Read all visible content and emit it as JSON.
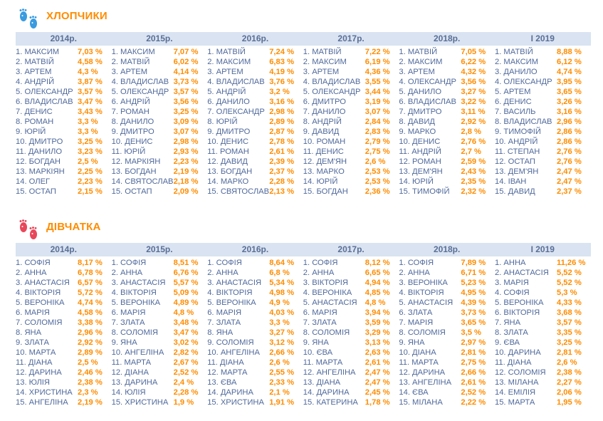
{
  "colors": {
    "accent": "#ff8c00",
    "header_bg": "#d9e3f2",
    "name_text": "#506a9c",
    "boys_icon": "#3a9be0",
    "girls_icon": "#e8475a"
  },
  "sections": [
    {
      "id": "boys",
      "title": "ХЛОПЧИКИ",
      "icon": "blue-footprints-icon",
      "columns": [
        {
          "year": "2014р.",
          "rows": [
            {
              "n": "1. МАКСИМ",
              "p": "7,03 %"
            },
            {
              "n": "2. МАТВІЙ",
              "p": "4,58 %"
            },
            {
              "n": "3. АРТЕМ",
              "p": "4,3 %"
            },
            {
              "n": "4. АНДРІЙ",
              "p": "3,87 %"
            },
            {
              "n": "5. ОЛЕКСАНДР",
              "p": "3,57 %"
            },
            {
              "n": "6. ВЛАДИСЛАВ",
              "p": "3,47 %"
            },
            {
              "n": "7. ДЕНИС",
              "p": "3,43 %"
            },
            {
              "n": "8. РОМАН",
              "p": "3,3 %"
            },
            {
              "n": "9. ЮРІЙ",
              "p": "3,3 %"
            },
            {
              "n": "10. ДМИТРО",
              "p": "3,25 %"
            },
            {
              "n": "11. ДАНИЛО",
              "p": "3,23 %"
            },
            {
              "n": "12. БОГДАН",
              "p": "2,5 %"
            },
            {
              "n": "13. МАРКІЯН",
              "p": "2,25 %"
            },
            {
              "n": "14. ОЛЕГ",
              "p": "2,23 %"
            },
            {
              "n": "15. ОСТАП",
              "p": "2,15 %"
            }
          ]
        },
        {
          "year": "2015р.",
          "rows": [
            {
              "n": "1. МАКСИМ",
              "p": "7,07 %"
            },
            {
              "n": "2. МАТВІЙ",
              "p": "6,02 %"
            },
            {
              "n": "3. АРТЕМ",
              "p": "4,14 %"
            },
            {
              "n": "4. ВЛАДИСЛАВ",
              "p": "3,73 %"
            },
            {
              "n": "5. ОЛЕКСАНДР",
              "p": "3,57 %"
            },
            {
              "n": "6. АНДРІЙ",
              "p": "3,56 %"
            },
            {
              "n": "7. РОМАН",
              "p": "3,25 %"
            },
            {
              "n": "8. ДАНИЛО",
              "p": "3,09 %"
            },
            {
              "n": "9. ДМИТРО",
              "p": "3,07 %"
            },
            {
              "n": "10. ДЕНИС",
              "p": "2,98 %"
            },
            {
              "n": "11. ЮРІЙ",
              "p": "2,93 %"
            },
            {
              "n": "12. МАРКІЯН",
              "p": "2,23 %"
            },
            {
              "n": "13. БОГДАН",
              "p": "2,19 %"
            },
            {
              "n": "14. СВЯТОСЛАВ",
              "p": "2,18 %"
            },
            {
              "n": "15. ОСТАП",
              "p": "2,09 %"
            }
          ]
        },
        {
          "year": "2016р.",
          "rows": [
            {
              "n": "1. МАТВІЙ",
              "p": "7,24 %"
            },
            {
              "n": "2. МАКСИМ",
              "p": "6,83 %"
            },
            {
              "n": "3. АРТЕМ",
              "p": "4,19 %"
            },
            {
              "n": "4. ВЛАДИСЛАВ",
              "p": "3,76 %"
            },
            {
              "n": "5. АНДРІЙ",
              "p": "3,2 %"
            },
            {
              "n": "6. ДАНИЛО",
              "p": "3,16 %"
            },
            {
              "n": "7. ОЛЕКСАНДР",
              "p": "2,98 %"
            },
            {
              "n": "8. ЮРІЙ",
              "p": "2,89 %"
            },
            {
              "n": "9. ДМИТРО",
              "p": "2,87 %"
            },
            {
              "n": "10. ДЕНИС",
              "p": "2,78 %"
            },
            {
              "n": "11. РОМАН",
              "p": "2,61 %"
            },
            {
              "n": "12. ДАВИД",
              "p": "2,39 %"
            },
            {
              "n": "13. БОГДАН",
              "p": "2,37 %"
            },
            {
              "n": "14. МАРКО",
              "p": "2,28 %"
            },
            {
              "n": "15. СВЯТОСЛАВ",
              "p": "2,13 %"
            }
          ]
        },
        {
          "year": "2017р.",
          "rows": [
            {
              "n": "1. МАТВІЙ",
              "p": "7,22 %"
            },
            {
              "n": "2. МАКСИМ",
              "p": "6,19 %"
            },
            {
              "n": "3. АРТЕМ",
              "p": "4,36 %"
            },
            {
              "n": "4. ВЛАДИСЛАВ",
              "p": "3,55 %"
            },
            {
              "n": "5. ОЛЕКСАНДР",
              "p": "3,44 %"
            },
            {
              "n": "6. ДМИТРО",
              "p": "3,19 %"
            },
            {
              "n": "7. ДАНИЛО",
              "p": "3,07 %"
            },
            {
              "n": "8. АНДРІЙ",
              "p": "2,84 %"
            },
            {
              "n": "9. ДАВИД",
              "p": "2,83 %"
            },
            {
              "n": "10. РОМАН",
              "p": "2,79 %"
            },
            {
              "n": "11. ДЕНИС",
              "p": "2,75 %"
            },
            {
              "n": "12. ДЕМ'ЯН",
              "p": "2,6 %"
            },
            {
              "n": "13. МАРКО",
              "p": "2,53 %"
            },
            {
              "n": "14. ЮРІЙ",
              "p": "2,53 %"
            },
            {
              "n": "15. БОГДАН",
              "p": "2,36 %"
            }
          ]
        },
        {
          "year": "2018р.",
          "rows": [
            {
              "n": "1. МАТВІЙ",
              "p": "7,05 %"
            },
            {
              "n": "2. МАКСИМ",
              "p": "6,22 %"
            },
            {
              "n": "3. АРТЕМ",
              "p": "4,32 %"
            },
            {
              "n": "4. ОЛЕКСАНДР",
              "p": "3,56 %"
            },
            {
              "n": "5. ДАНИЛО",
              "p": "3,27 %"
            },
            {
              "n": "6. ВЛАДИСЛАВ",
              "p": "3,22 %"
            },
            {
              "n": "7. ДМИТРО",
              "p": "3,11 %"
            },
            {
              "n": "8. ДАВИД",
              "p": "2,92 %"
            },
            {
              "n": "9. МАРКО",
              "p": "2,8 %"
            },
            {
              "n": "10. ДЕНИС",
              "p": "2,76 %"
            },
            {
              "n": "11. АНДРІЙ",
              "p": "2,7 %"
            },
            {
              "n": "12. РОМАН",
              "p": "2,59 %"
            },
            {
              "n": "13. ДЕМ'ЯН",
              "p": "2,43 %"
            },
            {
              "n": "14. ЮРІЙ",
              "p": "2,35 %"
            },
            {
              "n": "15. ТИМОФІЙ",
              "p": "2,32 %"
            }
          ]
        },
        {
          "year": "I 2019",
          "rows": [
            {
              "n": "1. МАТВІЙ",
              "p": "8,88 %"
            },
            {
              "n": "2. МАКСИМ",
              "p": "6,12 %"
            },
            {
              "n": "3. ДАНИЛО",
              "p": "4,74 %"
            },
            {
              "n": "4. ОЛЕКСАНДР",
              "p": "3,95 %"
            },
            {
              "n": "5. АРТЕМ",
              "p": "3,65 %"
            },
            {
              "n": "6. ДЕНИС",
              "p": "3,26 %"
            },
            {
              "n": "7. ВАСИЛЬ",
              "p": "3,16 %"
            },
            {
              "n": "8. ВЛАДИСЛАВ",
              "p": "2,96 %"
            },
            {
              "n": "9. ТИМОФІЙ",
              "p": "2,86 %"
            },
            {
              "n": "10. АНДРІЙ",
              "p": "2,86 %"
            },
            {
              "n": "11. СТЕПАН",
              "p": "2,76 %"
            },
            {
              "n": "12. ОСТАП",
              "p": "2,76 %"
            },
            {
              "n": "13. ДЕМ'ЯН",
              "p": "2,47 %"
            },
            {
              "n": "14. ІВАН",
              "p": "2,47 %"
            },
            {
              "n": "15. ДАВИД",
              "p": "2,37 %"
            }
          ]
        }
      ]
    },
    {
      "id": "girls",
      "title": "ДІВЧАТКА",
      "icon": "red-footprints-icon",
      "columns": [
        {
          "year": "2014р.",
          "rows": [
            {
              "n": "1. СОФІЯ",
              "p": "8,17 %"
            },
            {
              "n": "2. АННА",
              "p": "6,78 %"
            },
            {
              "n": "3. АНАСТАСІЯ",
              "p": "6,57 %"
            },
            {
              "n": "4. ВІКТОРІЯ",
              "p": "5,72 %"
            },
            {
              "n": "5. ВЕРОНІКА",
              "p": "4,74 %"
            },
            {
              "n": "6. МАРІЯ",
              "p": "4,58 %"
            },
            {
              "n": "7. СОЛОМІЯ",
              "p": "3,38 %"
            },
            {
              "n": "8. ЯНА",
              "p": "2,96 %"
            },
            {
              "n": "9. ЗЛАТА",
              "p": "2,92 %"
            },
            {
              "n": "10. МАРТА",
              "p": "2,89 %"
            },
            {
              "n": "11. ДІАНА",
              "p": "2,5 %"
            },
            {
              "n": "12. ДАРИНА",
              "p": "2,46 %"
            },
            {
              "n": "13. ЮЛІЯ",
              "p": "2,38 %"
            },
            {
              "n": "14. ХРИСТИНА",
              "p": "2,3 %"
            },
            {
              "n": "15. АНГЕЛІНА",
              "p": "2,19 %"
            }
          ]
        },
        {
          "year": "2015р.",
          "rows": [
            {
              "n": "1. СОФІЯ",
              "p": "8,51 %"
            },
            {
              "n": "2. АННА",
              "p": "6,76 %"
            },
            {
              "n": "3. АНАСТАСІЯ",
              "p": "5,57 %"
            },
            {
              "n": "4. ВІКТОРІЯ",
              "p": "5,09 %"
            },
            {
              "n": "5. ВЕРОНІКА",
              "p": "4,89 %"
            },
            {
              "n": "6. МАРІЯ",
              "p": "4,8 %"
            },
            {
              "n": "7. ЗЛАТА",
              "p": "3,48 %"
            },
            {
              "n": "8. СОЛОМІЯ",
              "p": "3,47 %"
            },
            {
              "n": "9. ЯНА",
              "p": "3,02 %"
            },
            {
              "n": "10. АНГЕЛІНА",
              "p": "2,82 %"
            },
            {
              "n": "11. МАРТА",
              "p": "2,67 %"
            },
            {
              "n": "12. ДІАНА",
              "p": "2,52 %"
            },
            {
              "n": "13. ДАРИНА",
              "p": "2,4 %"
            },
            {
              "n": "14. ЮЛІЯ",
              "p": "2,28 %"
            },
            {
              "n": "15. ХРИСТИНА",
              "p": "1,9 %"
            }
          ]
        },
        {
          "year": "2016р.",
          "rows": [
            {
              "n": "1. СОФІЯ",
              "p": "8,64 %"
            },
            {
              "n": "2. АННА",
              "p": "6,8 %"
            },
            {
              "n": "3. АНАСТАСІЯ",
              "p": "5,34 %"
            },
            {
              "n": "4. ВІКТОРІЯ",
              "p": "4,98 %"
            },
            {
              "n": "5. ВЕРОНІКА",
              "p": "4,9 %"
            },
            {
              "n": "6. МАРІЯ",
              "p": "4,03 %"
            },
            {
              "n": "7. ЗЛАТА",
              "p": "3,3 %"
            },
            {
              "n": "8. ЯНА",
              "p": "3,27 %"
            },
            {
              "n": "9. СОЛОМІЯ",
              "p": "3,12 %"
            },
            {
              "n": "10. АНГЕЛІНА",
              "p": "2,66 %"
            },
            {
              "n": "11. ДІАНА",
              "p": "2,6 %"
            },
            {
              "n": "12. МАРТА",
              "p": "2,55 %"
            },
            {
              "n": "13. ЄВА",
              "p": "2,33 %"
            },
            {
              "n": "14. ДАРИНА",
              "p": "2,1 %"
            },
            {
              "n": "15. ХРИСТИНА",
              "p": "1,91 %"
            }
          ]
        },
        {
          "year": "2017р.",
          "rows": [
            {
              "n": "1. СОФІЯ",
              "p": "8,12 %"
            },
            {
              "n": "2. АННА",
              "p": "6,65 %"
            },
            {
              "n": "3. ВІКТОРІЯ",
              "p": "4,94 %"
            },
            {
              "n": "4. ВЕРОНІКА",
              "p": "4,85 %"
            },
            {
              "n": "5. АНАСТАСІЯ",
              "p": "4,8 %"
            },
            {
              "n": "6. МАРІЯ",
              "p": "3,94 %"
            },
            {
              "n": "7. ЗЛАТА",
              "p": "3,59 %"
            },
            {
              "n": "8. СОЛОМІЯ",
              "p": "3,29 %"
            },
            {
              "n": "9. ЯНА",
              "p": "3,13 %"
            },
            {
              "n": "10. ЄВА",
              "p": "2,63 %"
            },
            {
              "n": "11. МАРТА",
              "p": "2,61 %"
            },
            {
              "n": "12. АНГЕЛІНА",
              "p": "2,47 %"
            },
            {
              "n": "13. ДІАНА",
              "p": "2,47 %"
            },
            {
              "n": "14. ДАРИНА",
              "p": "2,45 %"
            },
            {
              "n": "15. КАТЕРИНА",
              "p": "1,78 %"
            }
          ]
        },
        {
          "year": "2018р.",
          "rows": [
            {
              "n": "1. СОФІЯ",
              "p": "7,89 %"
            },
            {
              "n": "2. АННА",
              "p": "6,71 %"
            },
            {
              "n": "3. ВЕРОНІКА",
              "p": "5,23 %"
            },
            {
              "n": "4. ВІКТОРІЯ",
              "p": "4,95 %"
            },
            {
              "n": "5. АНАСТАСІЯ",
              "p": "4,39 %"
            },
            {
              "n": "6. ЗЛАТА",
              "p": "3,73 %"
            },
            {
              "n": "7. МАРІЯ",
              "p": "3,65 %"
            },
            {
              "n": "8. СОЛОМІЯ",
              "p": "3,5 %"
            },
            {
              "n": "9. ЯНА",
              "p": "2,97 %"
            },
            {
              "n": "10. ДІАНА",
              "p": "2,81 %"
            },
            {
              "n": "11. МАРТА",
              "p": "2,75 %"
            },
            {
              "n": "12. ДАРИНА",
              "p": "2,66 %"
            },
            {
              "n": "13. АНГЕЛІНА",
              "p": "2,61 %"
            },
            {
              "n": "14. ЄВА",
              "p": "2,52 %"
            },
            {
              "n": "15. МІЛАНА",
              "p": "2,22 %"
            }
          ]
        },
        {
          "year": "I 2019",
          "rows": [
            {
              "n": "1. АННА",
              "p": "11,26 %"
            },
            {
              "n": "2. АНАСТАСІЯ",
              "p": "5,52 %"
            },
            {
              "n": "3. МАРІЯ",
              "p": "5,52 %"
            },
            {
              "n": "4. СОФІЯ",
              "p": "5,3 %"
            },
            {
              "n": "5. ВЕРОНІКА",
              "p": "4,33 %"
            },
            {
              "n": "6. ВІКТОРІЯ",
              "p": "3,68 %"
            },
            {
              "n": "7. ЯНА",
              "p": "3,57 %"
            },
            {
              "n": "8. ЗЛАТА",
              "p": "3,35 %"
            },
            {
              "n": "9. ЄВА",
              "p": "3,25 %"
            },
            {
              "n": "10. ДАРИНА",
              "p": "2,81 %"
            },
            {
              "n": "11. ДІАНА",
              "p": "2,6 %"
            },
            {
              "n": "12. СОЛОМІЯ",
              "p": "2,38 %"
            },
            {
              "n": "13. МІЛАНА",
              "p": "2,27 %"
            },
            {
              "n": "14. ЕМІЛІЯ",
              "p": "2,06 %"
            },
            {
              "n": "15. МАРТА",
              "p": "1,95 %"
            }
          ]
        }
      ]
    }
  ]
}
